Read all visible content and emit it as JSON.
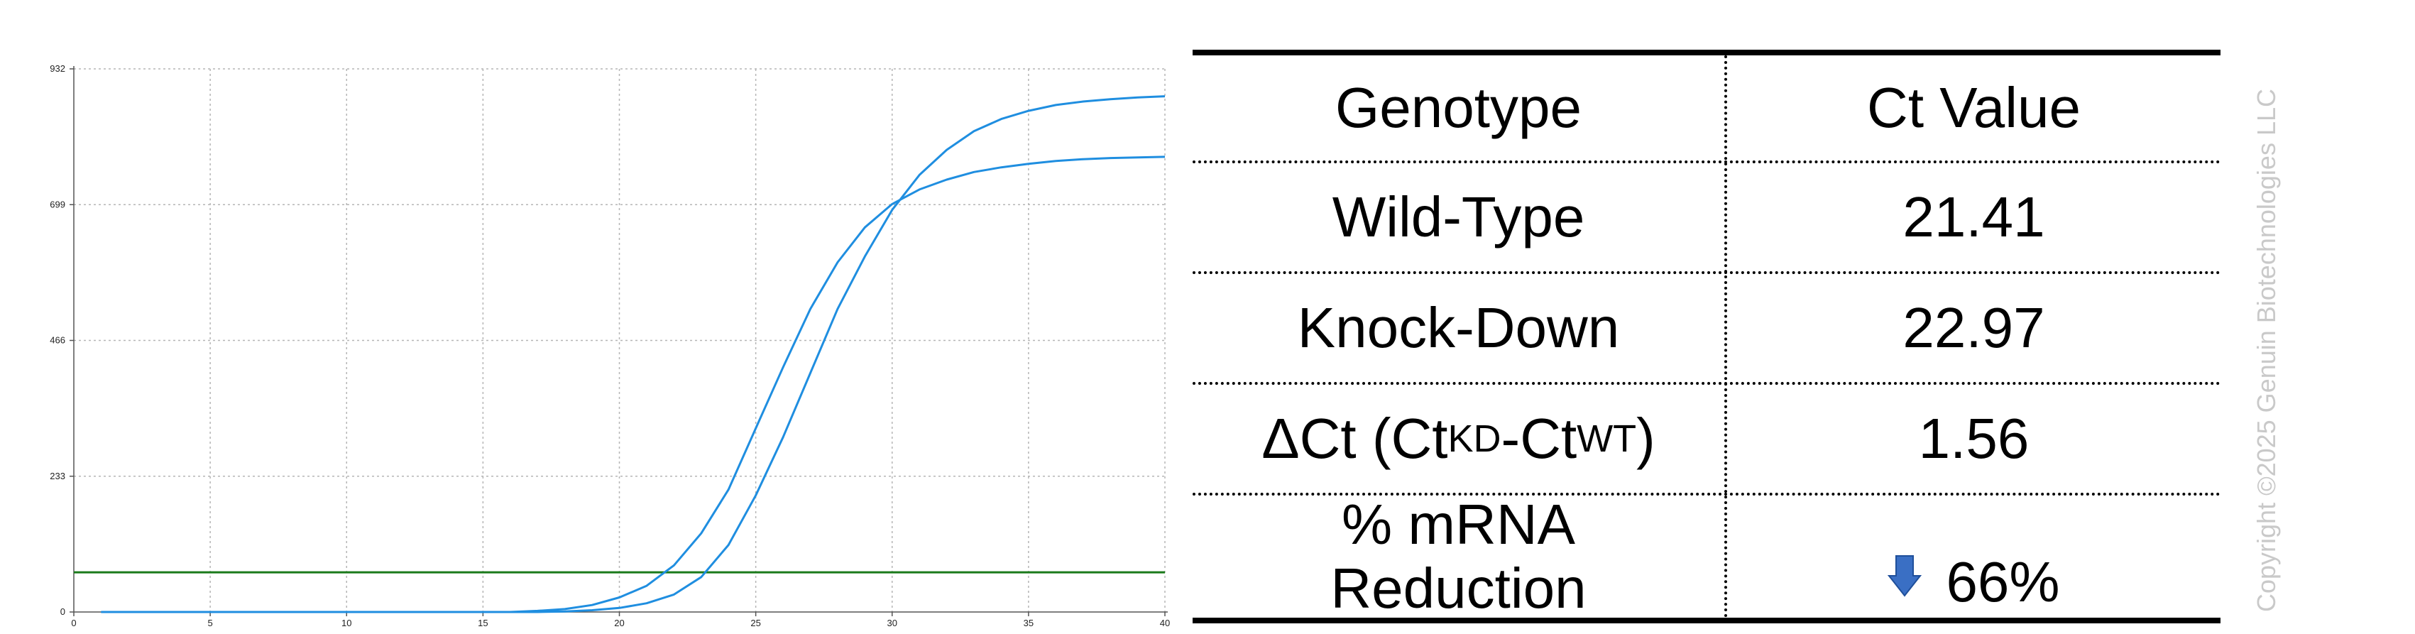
{
  "chart_data": {
    "type": "line",
    "title": "",
    "xlabel": "",
    "ylabel": "",
    "xlim": [
      0,
      40
    ],
    "ylim": [
      0,
      932
    ],
    "x_ticks": [
      0,
      5,
      10,
      15,
      20,
      25,
      30,
      35,
      40
    ],
    "y_ticks": [
      0,
      233,
      466,
      699,
      932
    ],
    "grid": true,
    "series": [
      {
        "color": "#1f8ee0",
        "x": [
          1,
          2,
          3,
          4,
          5,
          6,
          7,
          8,
          9,
          10,
          11,
          12,
          13,
          14,
          15,
          16,
          17,
          18,
          19,
          20,
          21,
          22,
          23,
          24,
          25,
          26,
          27,
          28,
          29,
          30,
          31,
          32,
          33,
          34,
          35,
          36,
          37,
          38,
          39,
          40
        ],
        "values": [
          0,
          0,
          0,
          0,
          0,
          0,
          0,
          0,
          0,
          0,
          0,
          0,
          0,
          0,
          0,
          0,
          2,
          5,
          12,
          25,
          45,
          80,
          135,
          210,
          315,
          420,
          520,
          600,
          660,
          700,
          725,
          742,
          755,
          763,
          769,
          774,
          777,
          779,
          780,
          781
        ]
      },
      {
        "color": "#1f8ee0",
        "x": [
          1,
          2,
          3,
          4,
          5,
          6,
          7,
          8,
          9,
          10,
          11,
          12,
          13,
          14,
          15,
          16,
          17,
          18,
          19,
          20,
          21,
          22,
          23,
          24,
          25,
          26,
          27,
          28,
          29,
          30,
          31,
          32,
          33,
          34,
          35,
          36,
          37,
          38,
          39,
          40
        ],
        "values": [
          0,
          0,
          0,
          0,
          0,
          0,
          0,
          0,
          0,
          0,
          0,
          0,
          0,
          0,
          0,
          0,
          0,
          1,
          3,
          7,
          15,
          30,
          60,
          115,
          200,
          300,
          410,
          520,
          610,
          690,
          750,
          793,
          825,
          846,
          860,
          870,
          876,
          880,
          883,
          885
        ]
      }
    ],
    "threshold": {
      "value": 68,
      "color": "#1a7a1a"
    }
  },
  "table": {
    "headers": [
      "Genotype",
      "Ct Value"
    ],
    "rows": [
      {
        "label": "Wild-Type",
        "value": "21.41"
      },
      {
        "label": "Knock-Down",
        "value": "22.97"
      }
    ],
    "delta_row": {
      "prefix": "ΔCt (Ct",
      "sub1": "KD",
      "mid": "-Ct",
      "sub2": "WT",
      "suffix": ")",
      "value": "1.56"
    },
    "reduction_row": {
      "label_line1": "% mRNA",
      "label_line2": "Reduction",
      "value": "66%",
      "icon": "down-arrow-icon",
      "icon_color": "#3a6fc4"
    }
  },
  "watermark": "Copyright ©2025 Genuin Biotechnologies LLC"
}
